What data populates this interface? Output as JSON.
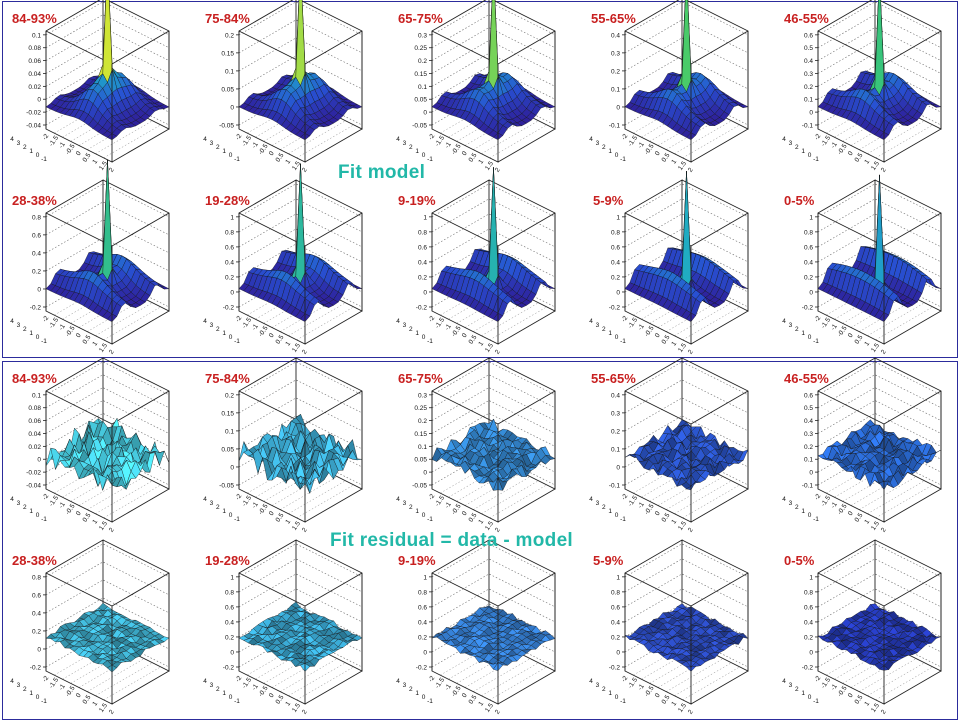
{
  "captions": {
    "model": "Fit model",
    "residual": "Fit residual = data - model"
  },
  "colors": {
    "label": "#c82020",
    "caption": "#22b8a8",
    "frame": "#2c2c9c"
  },
  "chart_data": [
    {
      "type": "surface",
      "group": "Fit model",
      "panels": [
        {
          "label": "84-93%",
          "zticks": [
            "0.1",
            "0.08",
            "0.06",
            "0.04",
            "0.02",
            "0",
            "-0.02",
            "-0.04"
          ]
        },
        {
          "label": "75-84%",
          "zticks": [
            "0.2",
            "0.15",
            "0.1",
            "0.05",
            "0",
            "-0.05"
          ]
        },
        {
          "label": "65-75%",
          "zticks": [
            "0.3",
            "0.25",
            "0.2",
            "0.15",
            "0.1",
            "0.05",
            "0",
            "-0.05"
          ]
        },
        {
          "label": "55-65%",
          "zticks": [
            "0.4",
            "0.3",
            "0.2",
            "0.1",
            "0",
            "-0.1"
          ]
        },
        {
          "label": "46-55%",
          "zticks": [
            "0.6",
            "0.5",
            "0.4",
            "0.3",
            "0.2",
            "0.1",
            "0",
            "-0.1"
          ]
        },
        {
          "label": "28-38%",
          "zticks": [
            "0.8",
            "0.6",
            "0.4",
            "0.2",
            "0",
            "-0.2"
          ]
        },
        {
          "label": "19-28%",
          "zticks": [
            "1",
            "0.8",
            "0.6",
            "0.4",
            "0.2",
            "0",
            "-0.2"
          ]
        },
        {
          "label": "9-19%",
          "zticks": [
            "1",
            "0.8",
            "0.6",
            "0.4",
            "0.2",
            "0",
            "-0.2"
          ]
        },
        {
          "label": "5-9%",
          "zticks": [
            "1",
            "0.8",
            "0.6",
            "0.4",
            "0.2",
            "0",
            "-0.2"
          ]
        },
        {
          "label": "0-5%",
          "zticks": [
            "1",
            "0.8",
            "0.6",
            "0.4",
            "0.2",
            "0",
            "-0.2"
          ]
        }
      ],
      "xticks": [
        "-2",
        "-1.5",
        "-1",
        "-0.5",
        "0",
        "0.5",
        "1",
        "1.5",
        "2"
      ],
      "yticks": [
        "4",
        "3",
        "2",
        "1",
        "0",
        "-1"
      ]
    },
    {
      "type": "surface",
      "group": "Fit residual = data - model",
      "panels": [
        {
          "label": "84-93%",
          "zticks": [
            "0.1",
            "0.08",
            "0.06",
            "0.04",
            "0.02",
            "0",
            "-0.02",
            "-0.04"
          ]
        },
        {
          "label": "75-84%",
          "zticks": [
            "0.2",
            "0.15",
            "0.1",
            "0.05",
            "0",
            "-0.05"
          ]
        },
        {
          "label": "65-75%",
          "zticks": [
            "0.3",
            "0.25",
            "0.2",
            "0.15",
            "0.1",
            "0.05",
            "0",
            "-0.05"
          ]
        },
        {
          "label": "55-65%",
          "zticks": [
            "0.4",
            "0.3",
            "0.2",
            "0.1",
            "0",
            "-0.1"
          ]
        },
        {
          "label": "46-55%",
          "zticks": [
            "0.6",
            "0.5",
            "0.4",
            "0.3",
            "0.2",
            "0.1",
            "0",
            "-0.1"
          ]
        },
        {
          "label": "28-38%",
          "zticks": [
            "0.8",
            "0.6",
            "0.4",
            "0.2",
            "0",
            "-0.2"
          ]
        },
        {
          "label": "19-28%",
          "zticks": [
            "1",
            "0.8",
            "0.6",
            "0.4",
            "0.2",
            "0",
            "-0.2"
          ]
        },
        {
          "label": "9-19%",
          "zticks": [
            "1",
            "0.8",
            "0.6",
            "0.4",
            "0.2",
            "0",
            "-0.2"
          ]
        },
        {
          "label": "5-9%",
          "zticks": [
            "1",
            "0.8",
            "0.6",
            "0.4",
            "0.2",
            "0",
            "-0.2"
          ]
        },
        {
          "label": "0-5%",
          "zticks": [
            "1",
            "0.8",
            "0.6",
            "0.4",
            "0.2",
            "0",
            "-0.2"
          ]
        }
      ],
      "xticks": [
        "-2",
        "-1.5",
        "-1",
        "-0.5",
        "0",
        "0.5",
        "1",
        "1.5",
        "2"
      ],
      "yticks": [
        "4",
        "3",
        "2",
        "1",
        "0",
        "-1"
      ]
    }
  ]
}
